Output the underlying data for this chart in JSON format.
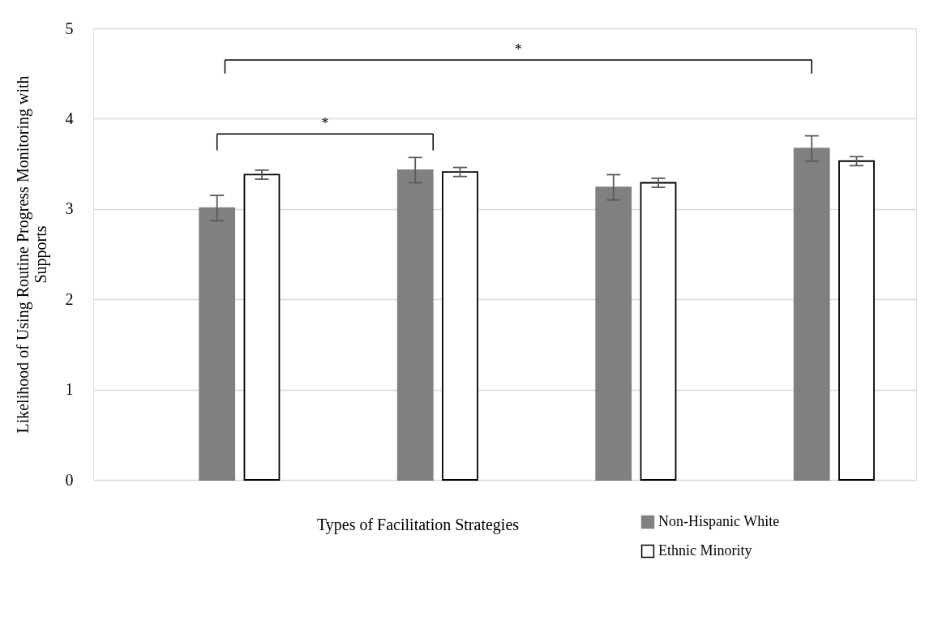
{
  "chart_data": {
    "type": "bar",
    "categories": [
      null,
      null,
      null,
      null
    ],
    "xlabel": "Types of Facilitation Strategies",
    "ylabel": "Likelihood of Using Routine Progress Monitoring with Supports",
    "ylim": [
      0,
      5
    ],
    "yticks": [
      0,
      1,
      2,
      3,
      4,
      5
    ],
    "grid": "y",
    "legend": "bottom right",
    "tick_labels": "y",
    "series": [
      {
        "name": "Non-Hispanic White",
        "color": "#808080",
        "values": [
          3.01,
          3.43,
          3.24,
          3.67
        ],
        "errors": [
          0.14,
          0.14,
          0.14,
          0.14
        ]
      },
      {
        "name": "Ethnic Minority",
        "color": "#ffffff",
        "values": [
          3.38,
          3.41,
          3.29,
          3.53
        ],
        "errors": [
          0.05,
          0.05,
          0.05,
          0.05
        ]
      }
    ],
    "annotations": [
      "*",
      "*"
    ]
  }
}
